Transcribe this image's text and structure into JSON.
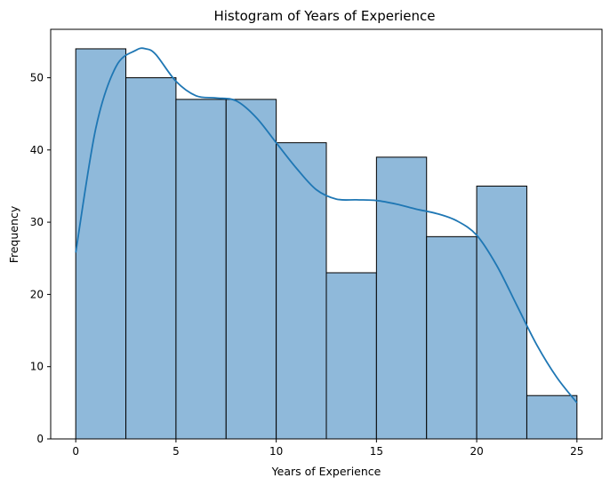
{
  "chart_data": {
    "type": "bar",
    "title": "Histogram of Years of Experience",
    "xlabel": "Years of Experience",
    "ylabel": "Frequency",
    "xlim": [
      -1.25,
      26.25
    ],
    "ylim": [
      0,
      56.7
    ],
    "xticks": [
      0,
      5,
      10,
      15,
      20,
      25
    ],
    "yticks": [
      0,
      10,
      20,
      30,
      40,
      50
    ],
    "bins": [
      {
        "x0": 0,
        "x1": 2.5,
        "count": 54
      },
      {
        "x0": 2.5,
        "x1": 5,
        "count": 50
      },
      {
        "x0": 5,
        "x1": 7.5,
        "count": 47
      },
      {
        "x0": 7.5,
        "x1": 10,
        "count": 47
      },
      {
        "x0": 10,
        "x1": 12.5,
        "count": 41
      },
      {
        "x0": 12.5,
        "x1": 15,
        "count": 23
      },
      {
        "x0": 15,
        "x1": 17.5,
        "count": 39
      },
      {
        "x0": 17.5,
        "x1": 20,
        "count": 28
      },
      {
        "x0": 20,
        "x1": 22.5,
        "count": 35
      },
      {
        "x0": 22.5,
        "x1": 25,
        "count": 6
      }
    ],
    "kde": {
      "x": [
        0,
        1,
        2,
        3,
        3.5,
        4,
        5,
        6,
        7,
        8,
        9,
        10,
        11,
        12,
        13,
        14,
        15,
        16,
        17,
        18,
        19,
        20,
        21,
        22,
        23,
        24,
        25
      ],
      "y": [
        25.8,
        43,
        51.5,
        53.8,
        54,
        53.2,
        49.5,
        47.5,
        47.2,
        46.8,
        44.5,
        41,
        37.5,
        34.5,
        33.2,
        33.1,
        33,
        32.5,
        31.8,
        31.2,
        30.2,
        28.2,
        24,
        18.5,
        13,
        8.5,
        5
      ]
    },
    "grid": false,
    "colors": {
      "bar_fill": "#8fb9da",
      "bar_edge": "#000000",
      "kde_line": "#1f77b4"
    }
  }
}
